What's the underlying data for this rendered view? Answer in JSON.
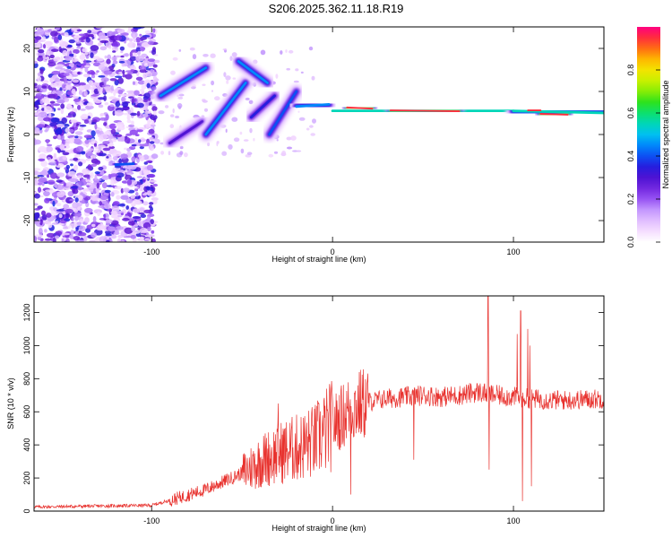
{
  "title": "S206.2025.362.11.18.R19",
  "colors": {
    "line": "#e8322e",
    "axis": "#000000",
    "cmap": [
      "#ffffff",
      "#f0d0ff",
      "#c9a0ff",
      "#8a40f0",
      "#5a10d0",
      "#2020e0",
      "#0070ff",
      "#00c0f0",
      "#00e0a0",
      "#20e020",
      "#a0f000",
      "#f0f000",
      "#ffb000",
      "#ff4020",
      "#ff0080"
    ]
  },
  "chart_data": [
    {
      "id": "spectrogram",
      "type": "heatmap",
      "xlabel": "Height of straight line (km)",
      "ylabel": "Frequency (Hz)",
      "xlim": [
        -165,
        150
      ],
      "ylim": [
        -25,
        25
      ],
      "xticks": [
        {
          "v": -100,
          "label": "-100"
        },
        {
          "v": 0,
          "label": "0"
        },
        {
          "v": 100,
          "label": "100"
        }
      ],
      "yticks": [
        {
          "v": -20,
          "label": "-20"
        },
        {
          "v": -10,
          "label": "-10"
        },
        {
          "v": 0,
          "label": "0"
        },
        {
          "v": 10,
          "label": "10"
        },
        {
          "v": 20,
          "label": "20"
        }
      ],
      "colorbar": {
        "label": "Normalized spectral amplitude",
        "range": [
          0,
          1
        ],
        "ticks": [
          {
            "v": 0.0,
            "label": "0.0"
          },
          {
            "v": 0.2,
            "label": "0.2"
          },
          {
            "v": 0.4,
            "label": "0.4"
          },
          {
            "v": 0.6,
            "label": "0.6"
          },
          {
            "v": 0.8,
            "label": "0.8"
          }
        ]
      },
      "noise_region": {
        "x": [
          -165,
          -98
        ],
        "y": [
          -25,
          25
        ]
      },
      "segments": [
        {
          "x0": -120,
          "y0": -7.0,
          "x1": -110,
          "y1": -6.8,
          "amp": 0.4
        },
        {
          "x0": -95,
          "y0": 9,
          "x1": -70,
          "y1": 15.5,
          "amp": 0.45
        },
        {
          "x0": -90,
          "y0": -2,
          "x1": -72,
          "y1": 3,
          "amp": 0.3
        },
        {
          "x0": -70,
          "y0": 0,
          "x1": -48,
          "y1": 12,
          "amp": 0.45
        },
        {
          "x0": -52,
          "y0": 17,
          "x1": -36,
          "y1": 12,
          "amp": 0.45
        },
        {
          "x0": -45,
          "y0": 4,
          "x1": -32,
          "y1": 9,
          "amp": 0.35
        },
        {
          "x0": -35,
          "y0": 0,
          "x1": -20,
          "y1": 10,
          "amp": 0.4
        },
        {
          "x0": -20,
          "y0": 6.5,
          "x1": -2,
          "y1": 7,
          "amp": 0.45
        },
        {
          "x0": 0,
          "y0": 5.5,
          "x1": 100,
          "y1": 5.5,
          "amp": 0.55
        },
        {
          "x0": 8,
          "y0": 6.3,
          "x1": 22,
          "y1": 6.0,
          "amp": 0.95
        },
        {
          "x0": 32,
          "y0": 5.6,
          "x1": 70,
          "y1": 5.4,
          "amp": 0.95
        },
        {
          "x0": 100,
          "y0": 5.5,
          "x1": 150,
          "y1": 5.0,
          "amp": 0.55
        },
        {
          "x0": 108,
          "y0": 5.6,
          "x1": 115,
          "y1": 5.6,
          "amp": 0.95
        },
        {
          "x0": 115,
          "y0": 4.8,
          "x1": 130,
          "y1": 4.6,
          "amp": 0.95
        }
      ]
    },
    {
      "id": "snr",
      "type": "line",
      "xlabel": "Height of straight line (km)",
      "ylabel": "SNR (10 * v/v)",
      "xlim": [
        -165,
        150
      ],
      "ylim": [
        0,
        1300
      ],
      "xticks": [
        {
          "v": -100,
          "label": "-100"
        },
        {
          "v": 0,
          "label": "0"
        },
        {
          "v": 100,
          "label": "100"
        }
      ],
      "yticks": [
        {
          "v": 0,
          "label": "0"
        },
        {
          "v": 200,
          "label": "200"
        },
        {
          "v": 400,
          "label": "400"
        },
        {
          "v": 600,
          "label": "600"
        },
        {
          "v": 800,
          "label": "800"
        },
        {
          "v": 1000,
          "label": "1000"
        },
        {
          "v": 1200,
          "label": "1200"
        }
      ],
      "envelope": {
        "x": [
          -165,
          -100,
          -85,
          -70,
          -60,
          -50,
          -40,
          -30,
          -20,
          -10,
          0,
          10,
          20,
          30,
          40,
          50,
          60,
          70,
          80,
          90,
          100,
          110,
          120,
          130,
          150
        ],
        "y": [
          25,
          35,
          80,
          130,
          180,
          230,
          300,
          350,
          380,
          420,
          520,
          620,
          660,
          680,
          690,
          700,
          690,
          700,
          720,
          700,
          690,
          680,
          670,
          670,
          680
        ]
      },
      "spikes": [
        {
          "x": 86,
          "y": 1300
        },
        {
          "x": 86.5,
          "y": 250
        },
        {
          "x": 102,
          "y": 1070
        },
        {
          "x": 104,
          "y": 1210
        },
        {
          "x": 105,
          "y": 60
        },
        {
          "x": 108,
          "y": 1100
        },
        {
          "x": 109,
          "y": 1000
        },
        {
          "x": 110,
          "y": 150
        },
        {
          "x": 10,
          "y": 100
        },
        {
          "x": 45,
          "y": 310
        },
        {
          "x": -30,
          "y": 650
        }
      ]
    }
  ]
}
